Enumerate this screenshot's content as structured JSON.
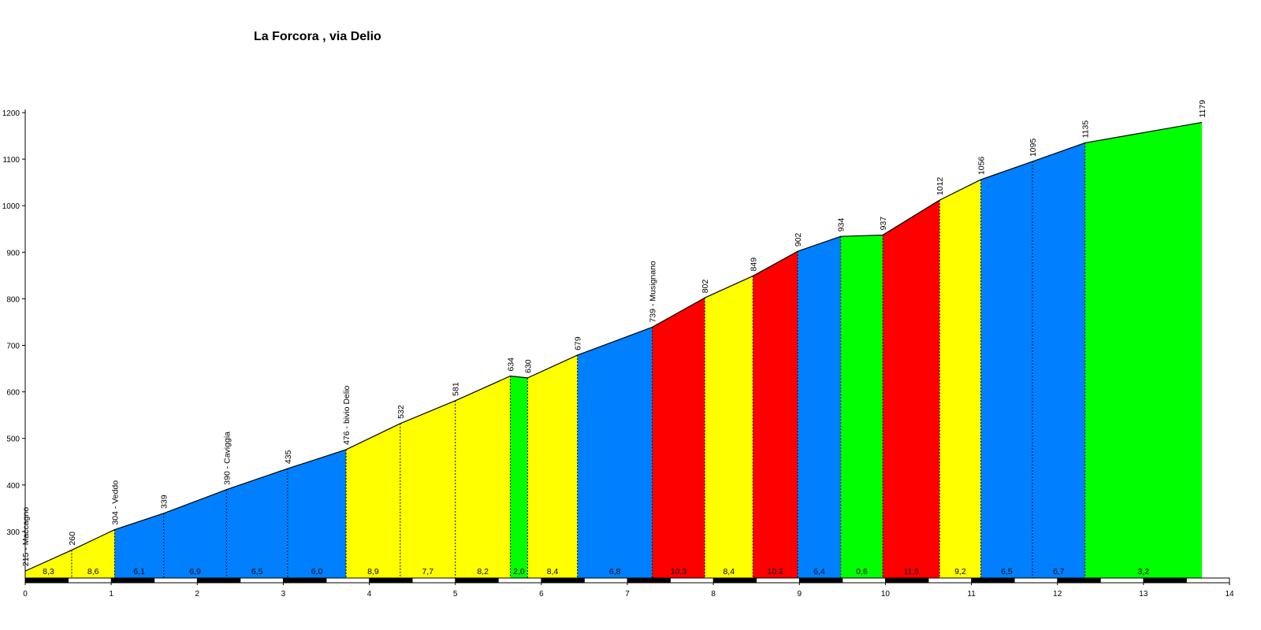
{
  "chart_data": {
    "type": "area",
    "title": "La Forcora , via Delio",
    "xlabel": "",
    "ylabel": "",
    "xlim": [
      0,
      14
    ],
    "ylim": [
      200,
      1200
    ],
    "x_ticks": [
      "0",
      "1",
      "2",
      "3",
      "4",
      "5",
      "6",
      "7",
      "8",
      "9",
      "10",
      "11",
      "12",
      "13",
      "14"
    ],
    "y_ticks": [
      "300",
      "400",
      "500",
      "600",
      "700",
      "800",
      "900",
      "1000",
      "1100",
      "1200"
    ],
    "grid": false,
    "colors": {
      "yellow": "#ffff00",
      "blue": "#0080ff",
      "green": "#00ff00",
      "red": "#ff0000"
    },
    "points": [
      {
        "x": 0.0,
        "y": 215,
        "label": "215 - Maccagno"
      },
      {
        "x": 0.54,
        "y": 260,
        "label": "260"
      },
      {
        "x": 1.04,
        "y": 304,
        "label": "304 - Veddo"
      },
      {
        "x": 1.61,
        "y": 339,
        "label": "339"
      },
      {
        "x": 2.34,
        "y": 390,
        "label": "390 - Caviggia"
      },
      {
        "x": 3.05,
        "y": 435,
        "label": "435"
      },
      {
        "x": 3.73,
        "y": 476,
        "label": "476 - bivio Delio"
      },
      {
        "x": 4.36,
        "y": 532,
        "label": "532"
      },
      {
        "x": 5.0,
        "y": 581,
        "label": "581"
      },
      {
        "x": 5.64,
        "y": 634,
        "label": "634"
      },
      {
        "x": 5.84,
        "y": 630,
        "label": "630"
      },
      {
        "x": 6.42,
        "y": 679,
        "label": "679"
      },
      {
        "x": 7.29,
        "y": 739,
        "label": "739 - Musignano"
      },
      {
        "x": 7.9,
        "y": 802,
        "label": "802"
      },
      {
        "x": 8.46,
        "y": 849,
        "label": "849"
      },
      {
        "x": 8.98,
        "y": 902,
        "label": "902"
      },
      {
        "x": 9.48,
        "y": 934,
        "label": "934"
      },
      {
        "x": 9.97,
        "y": 937,
        "label": "937"
      },
      {
        "x": 10.63,
        "y": 1012,
        "label": "1012"
      },
      {
        "x": 11.11,
        "y": 1056,
        "label": "1056"
      },
      {
        "x": 11.71,
        "y": 1095,
        "label": "1095"
      },
      {
        "x": 12.32,
        "y": 1135,
        "label": "1135"
      },
      {
        "x": 13.68,
        "y": 1179,
        "label": "1179"
      }
    ],
    "segments": [
      {
        "gradient": "8,3",
        "color": "yellow"
      },
      {
        "gradient": "8,6",
        "color": "yellow"
      },
      {
        "gradient": "6,1",
        "color": "blue"
      },
      {
        "gradient": "6,9",
        "color": "blue"
      },
      {
        "gradient": "6,5",
        "color": "blue"
      },
      {
        "gradient": "6,0",
        "color": "blue"
      },
      {
        "gradient": "8,9",
        "color": "yellow"
      },
      {
        "gradient": "7,7",
        "color": "yellow"
      },
      {
        "gradient": "8,2",
        "color": "yellow"
      },
      {
        "gradient": "2,0",
        "color": "green"
      },
      {
        "gradient": "8,4",
        "color": "yellow"
      },
      {
        "gradient": "6,8",
        "color": "blue"
      },
      {
        "gradient": "10,3",
        "color": "red"
      },
      {
        "gradient": "8,4",
        "color": "yellow"
      },
      {
        "gradient": "10,2",
        "color": "red"
      },
      {
        "gradient": "6,4",
        "color": "blue"
      },
      {
        "gradient": "0,6",
        "color": "green"
      },
      {
        "gradient": "11,5",
        "color": "red"
      },
      {
        "gradient": "9,2",
        "color": "yellow"
      },
      {
        "gradient": "6,5",
        "color": "blue"
      },
      {
        "gradient": "6,7",
        "color": "blue"
      },
      {
        "gradient": "3,2",
        "color": "green"
      }
    ]
  }
}
